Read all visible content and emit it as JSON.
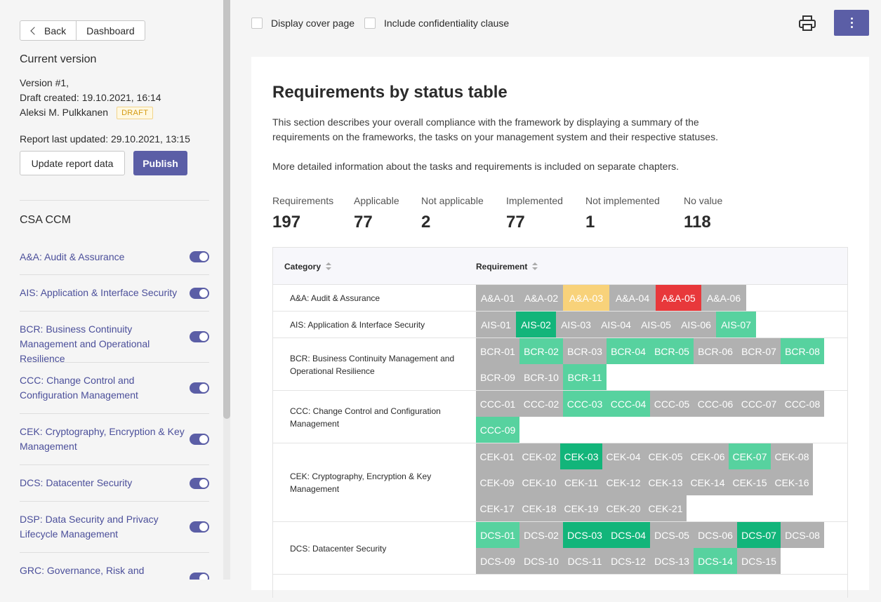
{
  "sidebar": {
    "back_label": "Back",
    "dashboard_label": "Dashboard",
    "current_version_heading": "Current version",
    "version": "Version #1,",
    "draft_created": "Draft created: 19.10.2021, 16:14",
    "author": "Aleksi M. Pulkkanen",
    "status_badge": "DRAFT",
    "last_updated": "Report last updated: 29.10.2021, 13:15",
    "update_button": "Update report data",
    "publish_button": "Publish",
    "framework_heading": "CSA CCM",
    "categories": [
      {
        "label": "A&A: Audit & Assurance",
        "enabled": true
      },
      {
        "label": "AIS: Application & Interface Security",
        "enabled": true
      },
      {
        "label": "BCR: Business Continuity Management and Operational Resilience",
        "enabled": true
      },
      {
        "label": "CCC: Change Control and Configuration Management",
        "enabled": true
      },
      {
        "label": "CEK: Cryptography, Encryption & Key Management",
        "enabled": true
      },
      {
        "label": "DCS: Datacenter Security",
        "enabled": true
      },
      {
        "label": "DSP: Data Security and Privacy Lifecycle Management",
        "enabled": true
      },
      {
        "label": "GRC: Governance, Risk and",
        "enabled": true
      }
    ]
  },
  "topbar": {
    "cover_page_label": "Display cover page",
    "cover_page_checked": false,
    "confidentiality_label": "Include confidentiality clause",
    "confidentiality_checked": false,
    "print_icon": "printer-icon",
    "more_icon": "more-vertical-icon"
  },
  "section": {
    "title": "Requirements by status table",
    "description_1": "This section describes your overall compliance with the framework by displaying a summary of the requirements on the frameworks, the tasks on your management system and their respective statuses.",
    "description_2": "More detailed information about the tasks and requirements is included on separate chapters."
  },
  "stats": [
    {
      "label": "Requirements",
      "value": "197"
    },
    {
      "label": "Applicable",
      "value": "77"
    },
    {
      "label": "Not applicable",
      "value": "2"
    },
    {
      "label": "Implemented",
      "value": "77"
    },
    {
      "label": "Not implemented",
      "value": "1"
    },
    {
      "label": "No value",
      "value": "118"
    }
  ],
  "table": {
    "col_category": "Category",
    "col_requirement": "Requirement",
    "status_colors": {
      "na": "#b1b1b1",
      "impl": "#57d29f",
      "dark": "#12b57a",
      "warn": "#f8d27a",
      "bad": "#e8383b"
    },
    "rows": [
      {
        "category": "A&A: Audit & Assurance",
        "reqs": [
          {
            "id": "A&A-01",
            "s": "na"
          },
          {
            "id": "A&A-02",
            "s": "na"
          },
          {
            "id": "A&A-03",
            "s": "warn"
          },
          {
            "id": "A&A-04",
            "s": "na"
          },
          {
            "id": "A&A-05",
            "s": "bad"
          },
          {
            "id": "A&A-06",
            "s": "na"
          }
        ]
      },
      {
        "category": "AIS: Application & Interface Security",
        "reqs": [
          {
            "id": "AIS-01",
            "s": "na"
          },
          {
            "id": "AIS-02",
            "s": "dark"
          },
          {
            "id": "AIS-03",
            "s": "na"
          },
          {
            "id": "AIS-04",
            "s": "na"
          },
          {
            "id": "AIS-05",
            "s": "na"
          },
          {
            "id": "AIS-06",
            "s": "na"
          },
          {
            "id": "AIS-07",
            "s": "impl"
          }
        ]
      },
      {
        "category": "BCR: Business Continuity Management and Operational Resilience",
        "reqs": [
          {
            "id": "BCR-01",
            "s": "na"
          },
          {
            "id": "BCR-02",
            "s": "impl"
          },
          {
            "id": "BCR-03",
            "s": "na"
          },
          {
            "id": "BCR-04",
            "s": "impl"
          },
          {
            "id": "BCR-05",
            "s": "impl"
          },
          {
            "id": "BCR-06",
            "s": "na"
          },
          {
            "id": "BCR-07",
            "s": "na"
          },
          {
            "id": "BCR-08",
            "s": "impl"
          },
          {
            "id": "BCR-09",
            "s": "na"
          },
          {
            "id": "BCR-10",
            "s": "na"
          },
          {
            "id": "BCR-11",
            "s": "impl"
          }
        ]
      },
      {
        "category": "CCC: Change Control and Configuration Management",
        "reqs": [
          {
            "id": "CCC-01",
            "s": "na"
          },
          {
            "id": "CCC-02",
            "s": "na"
          },
          {
            "id": "CCC-03",
            "s": "impl"
          },
          {
            "id": "CCC-04",
            "s": "impl"
          },
          {
            "id": "CCC-05",
            "s": "na"
          },
          {
            "id": "CCC-06",
            "s": "na"
          },
          {
            "id": "CCC-07",
            "s": "na"
          },
          {
            "id": "CCC-08",
            "s": "na"
          },
          {
            "id": "CCC-09",
            "s": "impl"
          }
        ]
      },
      {
        "category": "CEK: Cryptography, Encryption & Key Management",
        "reqs": [
          {
            "id": "CEK-01",
            "s": "na"
          },
          {
            "id": "CEK-02",
            "s": "na"
          },
          {
            "id": "CEK-03",
            "s": "dark"
          },
          {
            "id": "CEK-04",
            "s": "na"
          },
          {
            "id": "CEK-05",
            "s": "na"
          },
          {
            "id": "CEK-06",
            "s": "na"
          },
          {
            "id": "CEK-07",
            "s": "impl"
          },
          {
            "id": "CEK-08",
            "s": "na"
          },
          {
            "id": "CEK-09",
            "s": "na"
          },
          {
            "id": "CEK-10",
            "s": "na"
          },
          {
            "id": "CEK-11",
            "s": "na"
          },
          {
            "id": "CEK-12",
            "s": "na"
          },
          {
            "id": "CEK-13",
            "s": "na"
          },
          {
            "id": "CEK-14",
            "s": "na"
          },
          {
            "id": "CEK-15",
            "s": "na"
          },
          {
            "id": "CEK-16",
            "s": "na"
          },
          {
            "id": "CEK-17",
            "s": "na"
          },
          {
            "id": "CEK-18",
            "s": "na"
          },
          {
            "id": "CEK-19",
            "s": "na"
          },
          {
            "id": "CEK-20",
            "s": "na"
          },
          {
            "id": "CEK-21",
            "s": "na"
          }
        ]
      },
      {
        "category": "DCS: Datacenter Security",
        "reqs": [
          {
            "id": "DCS-01",
            "s": "impl"
          },
          {
            "id": "DCS-02",
            "s": "na"
          },
          {
            "id": "DCS-03",
            "s": "dark"
          },
          {
            "id": "DCS-04",
            "s": "dark"
          },
          {
            "id": "DCS-05",
            "s": "na"
          },
          {
            "id": "DCS-06",
            "s": "na"
          },
          {
            "id": "DCS-07",
            "s": "dark"
          },
          {
            "id": "DCS-08",
            "s": "na"
          },
          {
            "id": "DCS-09",
            "s": "na"
          },
          {
            "id": "DCS-10",
            "s": "na"
          },
          {
            "id": "DCS-11",
            "s": "na"
          },
          {
            "id": "DCS-12",
            "s": "na"
          },
          {
            "id": "DCS-13",
            "s": "na"
          },
          {
            "id": "DCS-14",
            "s": "impl"
          },
          {
            "id": "DCS-15",
            "s": "na"
          }
        ]
      }
    ]
  }
}
